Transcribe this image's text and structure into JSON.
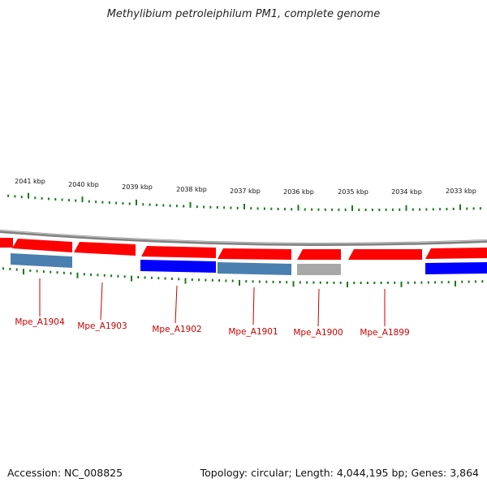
{
  "title": "Methylibium petroleiphilum PM1, complete genome",
  "footer": {
    "accession": "Accession: NC_008825",
    "summary": "Topology: circular; Length: 4,044,195 bp; Genes: 3,864"
  },
  "kbp_labels": [
    "2041 kbp",
    "2040 kbp",
    "2039 kbp",
    "2038 kbp",
    "2037 kbp",
    "2036 kbp",
    "2035 kbp",
    "2034 kbp",
    "2033 kbp"
  ],
  "gene_labels": [
    "Mpe_A1904",
    "Mpe_A1903",
    "Mpe_A1902",
    "Mpe_A1901",
    "Mpe_A1900",
    "Mpe_A1899"
  ],
  "colors": {
    "gene": "#ff0000",
    "cds_blue": "#0000ff",
    "cds_steel": "#4a7fb0",
    "cds_gray": "#a8a8a8",
    "ticks": "#1a7a1a",
    "backbone": "#808080",
    "label": "#cc0000"
  }
}
